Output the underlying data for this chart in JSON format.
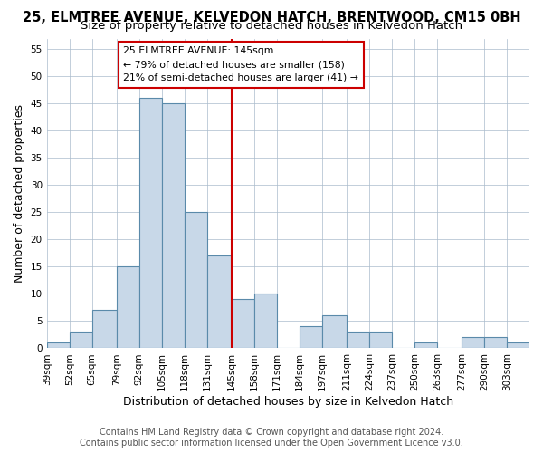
{
  "title": "25, ELMTREE AVENUE, KELVEDON HATCH, BRENTWOOD, CM15 0BH",
  "subtitle": "Size of property relative to detached houses in Kelvedon Hatch",
  "xlabel": "Distribution of detached houses by size in Kelvedon Hatch",
  "ylabel": "Number of detached properties",
  "bar_edges": [
    39,
    52,
    65,
    79,
    92,
    105,
    118,
    131,
    145,
    158,
    171,
    184,
    197,
    211,
    224,
    237,
    250,
    263,
    277,
    290,
    303,
    316
  ],
  "bar_heights": [
    1,
    3,
    7,
    15,
    46,
    45,
    25,
    17,
    9,
    10,
    0,
    4,
    6,
    3,
    3,
    0,
    1,
    0,
    2,
    2,
    1
  ],
  "bar_color": "#c8d8e8",
  "bar_edge_color": "#5a8aaa",
  "reference_line_x": 145,
  "reference_line_color": "#cc0000",
  "annotation_text": "25 ELMTREE AVENUE: 145sqm\n← 79% of detached houses are smaller (158)\n21% of semi-detached houses are larger (41) →",
  "annotation_box_color": "#ffffff",
  "annotation_box_edge_color": "#cc0000",
  "ylim": [
    0,
    57
  ],
  "yticks": [
    0,
    5,
    10,
    15,
    20,
    25,
    30,
    35,
    40,
    45,
    50,
    55
  ],
  "tick_labels": [
    "39sqm",
    "52sqm",
    "65sqm",
    "79sqm",
    "92sqm",
    "105sqm",
    "118sqm",
    "131sqm",
    "145sqm",
    "158sqm",
    "171sqm",
    "184sqm",
    "197sqm",
    "211sqm",
    "224sqm",
    "237sqm",
    "250sqm",
    "263sqm",
    "277sqm",
    "290sqm",
    "303sqm"
  ],
  "footer_line1": "Contains HM Land Registry data © Crown copyright and database right 2024.",
  "footer_line2": "Contains public sector information licensed under the Open Government Licence v3.0.",
  "bg_color": "#ffffff",
  "grid_color": "#aabbcc",
  "title_fontsize": 10.5,
  "subtitle_fontsize": 9.5,
  "axis_label_fontsize": 9,
  "tick_fontsize": 7.5,
  "footer_fontsize": 7
}
